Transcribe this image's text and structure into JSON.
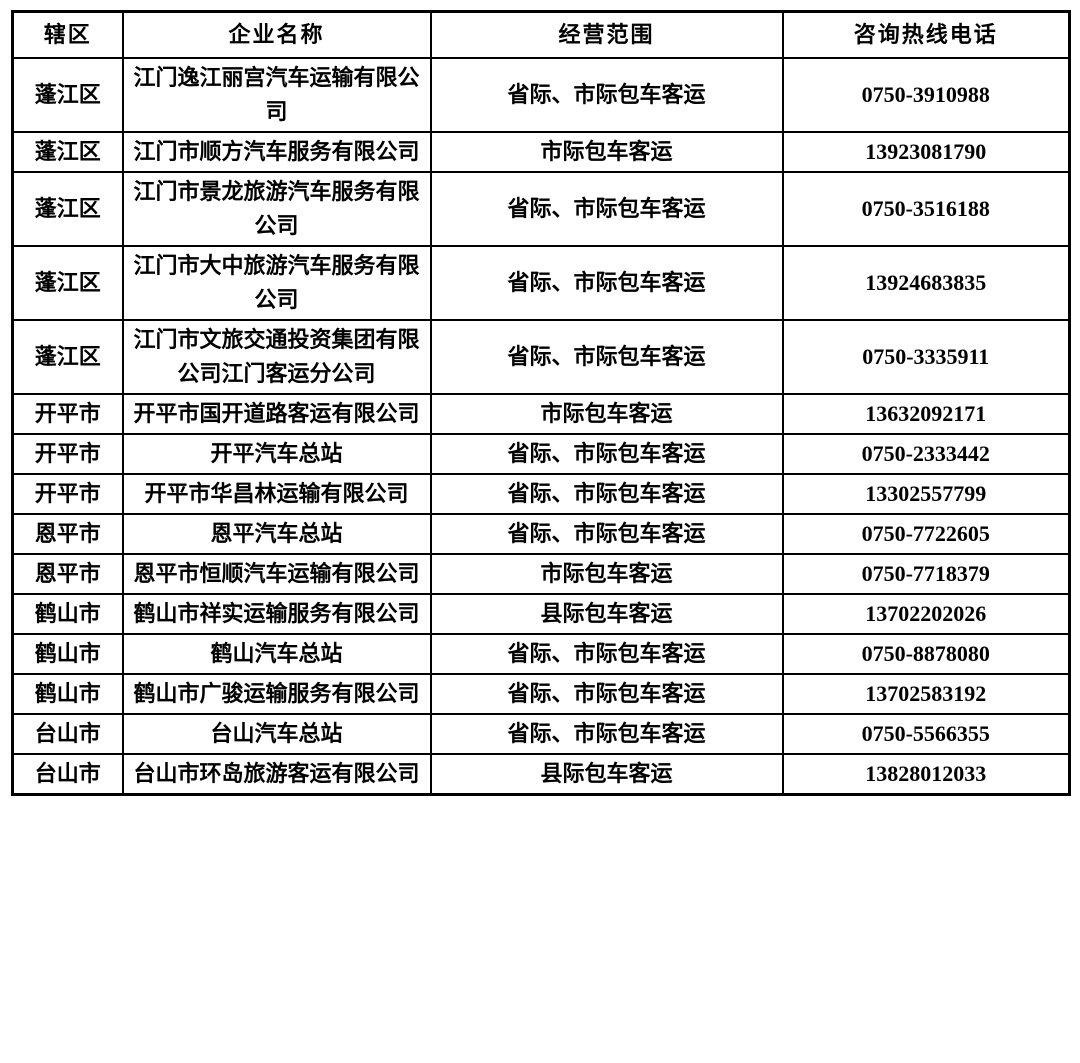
{
  "page": {
    "background_color": "#ffffff",
    "border_color": "#000000",
    "text_color": "#000000"
  },
  "table": {
    "headers": {
      "district": "辖区",
      "company": "企业名称",
      "scope": "经营范围",
      "phone": "咨询热线电话"
    },
    "rows": [
      {
        "district": "蓬江区",
        "company": "江门逸江丽宫汽车运输有限公司",
        "scope": "省际、市际包车客运",
        "phone": "0750-3910988"
      },
      {
        "district": "蓬江区",
        "company": "江门市顺方汽车服务有限公司",
        "scope": "市际包车客运",
        "phone": "13923081790"
      },
      {
        "district": "蓬江区",
        "company": "江门市景龙旅游汽车服务有限公司",
        "scope": "省际、市际包车客运",
        "phone": "0750-3516188"
      },
      {
        "district": "蓬江区",
        "company": "江门市大中旅游汽车服务有限公司",
        "scope": "省际、市际包车客运",
        "phone": "13924683835"
      },
      {
        "district": "蓬江区",
        "company": "江门市文旅交通投资集团有限公司江门客运分公司",
        "scope": "省际、市际包车客运",
        "phone": "0750-3335911"
      },
      {
        "district": "开平市",
        "company": "开平市国开道路客运有限公司",
        "scope": "市际包车客运",
        "phone": "13632092171"
      },
      {
        "district": "开平市",
        "company": "开平汽车总站",
        "scope": "省际、市际包车客运",
        "phone": "0750-2333442"
      },
      {
        "district": "开平市",
        "company": "开平市华昌林运输有限公司",
        "scope": "省际、市际包车客运",
        "phone": "13302557799"
      },
      {
        "district": "恩平市",
        "company": "恩平汽车总站",
        "scope": "省际、市际包车客运",
        "phone": "0750-7722605"
      },
      {
        "district": "恩平市",
        "company": "恩平市恒顺汽车运输有限公司",
        "scope": "市际包车客运",
        "phone": "0750-7718379"
      },
      {
        "district": "鹤山市",
        "company": "鹤山市祥实运输服务有限公司",
        "scope": "县际包车客运",
        "phone": "13702202026"
      },
      {
        "district": "鹤山市",
        "company": "鹤山汽车总站",
        "scope": "省际、市际包车客运",
        "phone": "0750-8878080"
      },
      {
        "district": "鹤山市",
        "company": "鹤山市广骏运输服务有限公司",
        "scope": "省际、市际包车客运",
        "phone": "13702583192"
      },
      {
        "district": "台山市",
        "company": "台山汽车总站",
        "scope": "省际、市际包车客运",
        "phone": "0750-5566355"
      },
      {
        "district": "台山市",
        "company": "台山市环岛旅游客运有限公司",
        "scope": "县际包车客运",
        "phone": "13828012033"
      }
    ]
  }
}
